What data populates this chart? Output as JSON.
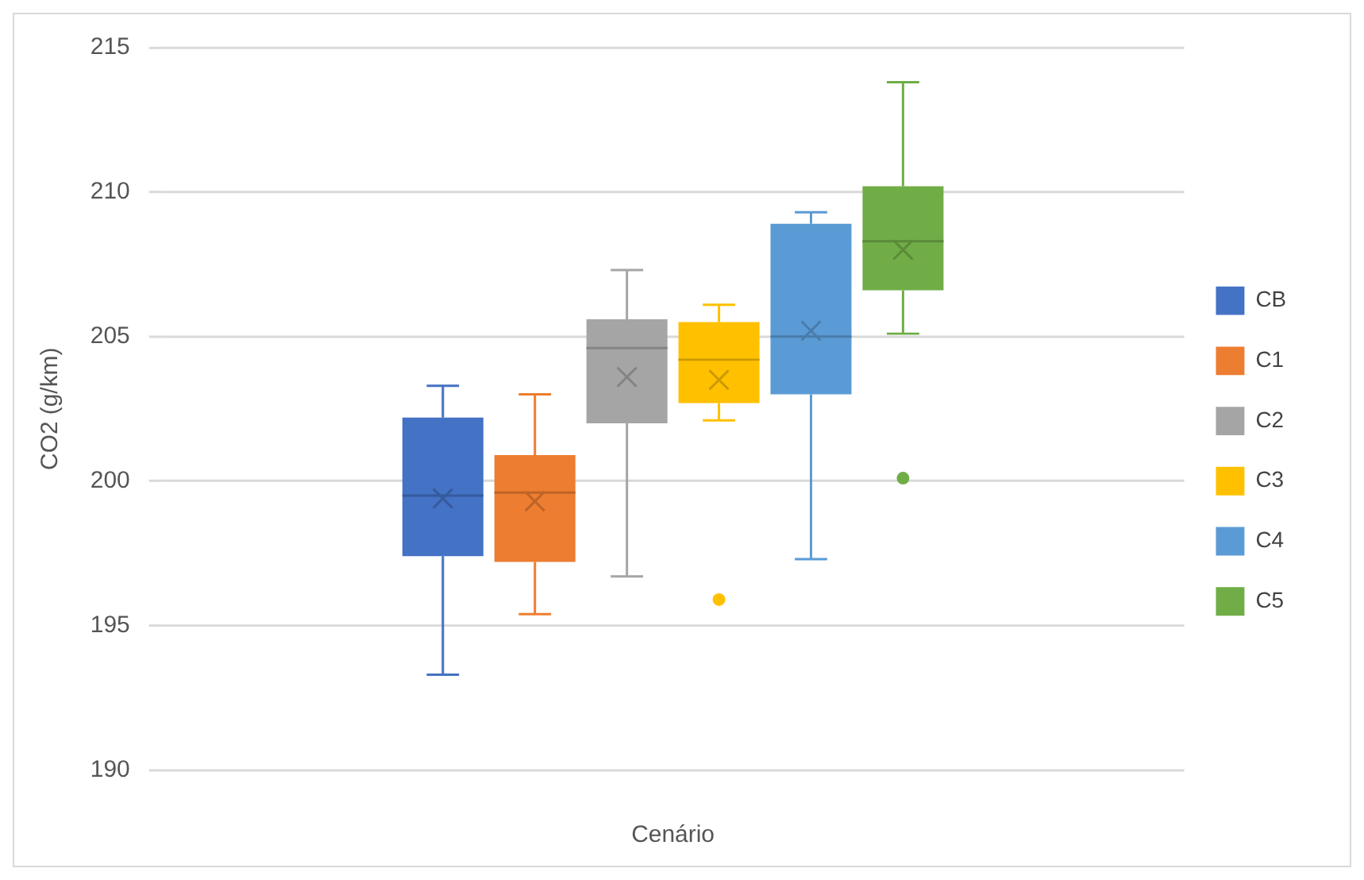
{
  "chart_data": {
    "type": "box",
    "xlabel": "Cenário",
    "ylabel": "CO2 (g/km)",
    "categories": [
      null
    ],
    "ylim": [
      190,
      215
    ],
    "yticks": [
      190,
      195,
      200,
      205,
      210,
      215
    ],
    "grid": "y",
    "legend": "right",
    "series": [
      {
        "name": "CB",
        "color": "#4472c4",
        "boxes": [
          {
            "low": 193.3,
            "q1": 197.4,
            "median": 199.5,
            "q3": 202.2,
            "high": 203.3,
            "mean": 199.4
          }
        ]
      },
      {
        "name": "C1",
        "color": "#ed7d31",
        "boxes": [
          {
            "low": 195.4,
            "q1": 197.2,
            "median": 199.6,
            "q3": 200.9,
            "high": 203.0,
            "mean": 199.3
          }
        ]
      },
      {
        "name": "C2",
        "color": "#a5a5a5",
        "boxes": [
          {
            "low": 196.7,
            "q1": 202.0,
            "median": 204.6,
            "q3": 205.6,
            "high": 207.3,
            "mean": 203.6
          }
        ]
      },
      {
        "name": "C3",
        "color": "#ffc000",
        "boxes": [
          {
            "low": 202.1,
            "q1": 202.7,
            "median": 204.2,
            "q3": 205.5,
            "high": 206.1,
            "mean": 203.5,
            "outliers": [
              195.9
            ]
          }
        ]
      },
      {
        "name": "C4",
        "color": "#5b9bd5",
        "boxes": [
          {
            "low": 197.3,
            "q1": 203.0,
            "median": 205.0,
            "q3": 208.9,
            "high": 209.3,
            "mean": 205.2
          }
        ]
      },
      {
        "name": "C5",
        "color": "#70ad47",
        "boxes": [
          {
            "low": 205.1,
            "q1": 206.6,
            "median": 208.3,
            "q3": 210.2,
            "high": 213.8,
            "mean": 208.0,
            "outliers": [
              200.1
            ]
          }
        ]
      }
    ]
  }
}
